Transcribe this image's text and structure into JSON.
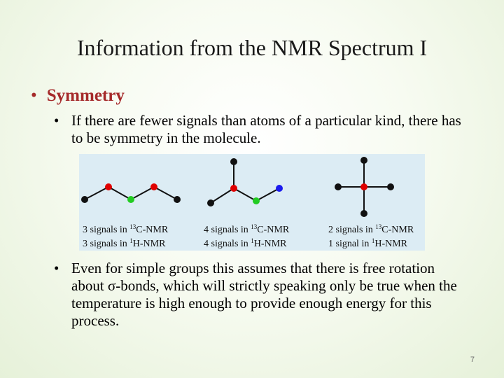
{
  "slide": {
    "title": "Information from the NMR Spectrum I",
    "bullet_marker": "•",
    "bullets": [
      {
        "label": "Symmetry"
      },
      {
        "text": "If there are fewer signals than atoms of a particular kind, there has to be symmetry in the molecule."
      },
      {
        "text": "Even for simple groups this assumes that there is free rotation about σ-bonds, which will strictly speaking only be true when the temperature is high enough to provide enough energy for this process."
      }
    ],
    "page_number": "7"
  },
  "figure": {
    "molecules": [
      {
        "c13_count": "3",
        "c13_mid": " signals in ",
        "c13_sup": "13",
        "c13_tail": "C-NMR",
        "h1_count": "3",
        "h1_mid": " signals in ",
        "h1_sup": "1",
        "h1_tail": "H-NMR"
      },
      {
        "c13_count": "4",
        "c13_mid": " signals in ",
        "c13_sup": "13",
        "c13_tail": "C-NMR",
        "h1_count": "4",
        "h1_mid": " signals in ",
        "h1_sup": "1",
        "h1_tail": "H-NMR"
      },
      {
        "c13_count": "2",
        "c13_mid": " signals in ",
        "c13_sup": "13",
        "c13_tail": "C-NMR",
        "h1_count": "1",
        "h1_mid": " signal in ",
        "h1_sup": "1",
        "h1_tail": "H-NMR"
      }
    ],
    "atom_colors": {
      "black": "#111111",
      "red": "#e00000",
      "green": "#22cc22",
      "blue": "#1a1aee"
    }
  }
}
